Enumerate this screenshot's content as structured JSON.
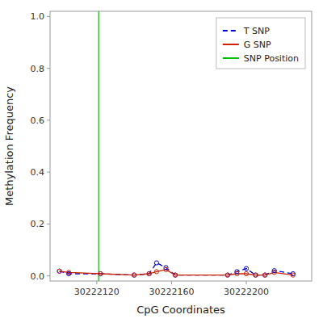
{
  "chart_data": {
    "type": "line",
    "x_label": "CpG Coordinates",
    "y_label": "Methylation Frequency",
    "x": [
      30222100,
      30222105,
      30222122,
      30222140,
      30222148,
      30222152,
      30222157,
      30222162,
      30222190,
      30222195,
      30222200,
      30222205,
      30222210,
      30222215,
      30222225
    ],
    "series": [
      {
        "name": "T SNP",
        "color": "#0000cc",
        "line_style": "dashed",
        "marker": "circle",
        "values": [
          0.018,
          0.008,
          0.008,
          0.003,
          0.008,
          0.05,
          0.032,
          0.003,
          0.003,
          0.016,
          0.028,
          0.003,
          0.003,
          0.02,
          0.008
        ]
      },
      {
        "name": "G SNP",
        "color": "#cc2200",
        "line_style": "solid",
        "marker": "circle",
        "values": [
          0.018,
          0.013,
          0.008,
          0.003,
          0.008,
          0.016,
          0.024,
          0.003,
          0.003,
          0.008,
          0.008,
          0.003,
          0.003,
          0.013,
          0.003
        ]
      }
    ],
    "reference_lines": [
      {
        "name": "SNP Position",
        "value": 30222121,
        "color": "#00bb00"
      }
    ],
    "xlim": [
      30222095,
      30222235
    ],
    "xticks": [
      30222120,
      30222160,
      30222200
    ],
    "ylim": [
      -0.02,
      1.02
    ],
    "yticks": [
      {
        "value": 0,
        "label": "0.0"
      },
      0.2,
      0.4,
      0.6,
      0.8,
      {
        "value": 1,
        "label": "1.0"
      }
    ],
    "grid": false,
    "legend": "upper right"
  }
}
